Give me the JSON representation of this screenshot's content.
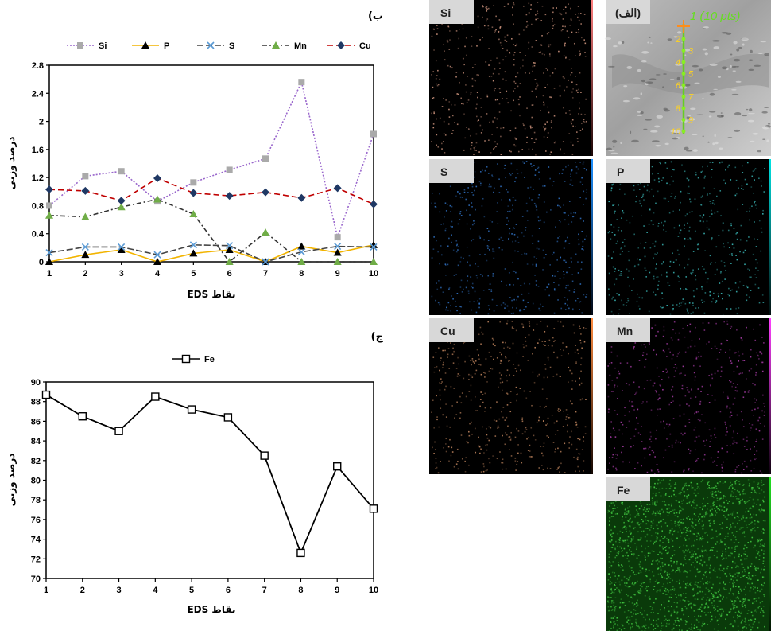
{
  "panels": {
    "b_label": "(ب",
    "c_label": "(ج",
    "a_label": "(الف)"
  },
  "sem": {
    "overlay_label": "1 (10 pts)",
    "point_numbers": [
      "2",
      "3",
      "4",
      "5",
      "6",
      "7",
      "8",
      "9",
      "10"
    ]
  },
  "maps": [
    {
      "element": "Si",
      "dot_color": "#c8907a",
      "bar_top": "#ff7f7f",
      "bar_bottom": "#1a0505"
    },
    {
      "element": "S",
      "dot_color": "#2f6fbf",
      "bar_top": "#1e90ff",
      "bar_bottom": "#020814"
    },
    {
      "element": "P",
      "dot_color": "#38b2b2",
      "bar_top": "#00e5e5",
      "bar_bottom": "#021010"
    },
    {
      "element": "Cu",
      "dot_color": "#b9805a",
      "bar_top": "#ff8c40",
      "bar_bottom": "#120602"
    },
    {
      "element": "Mn",
      "dot_color": "#a03aa0",
      "bar_top": "#ff40ff",
      "bar_bottom": "#100210"
    },
    {
      "element": "Fe",
      "dot_color": "#3fc23f",
      "bar_top": "#22e022",
      "bar_bottom": "#021202"
    }
  ],
  "chart_data": [
    {
      "type": "line",
      "xlabel": "EDS نقاط",
      "ylabel": "درصد وزنی",
      "x": [
        1,
        2,
        3,
        4,
        5,
        6,
        7,
        8,
        9,
        10
      ],
      "ylim": [
        0,
        2.8
      ],
      "yticks": [
        "0",
        "0.4",
        "0.8",
        "1.2",
        "1.6",
        "2",
        "2.4",
        "2.8"
      ],
      "ytick_values": [
        0,
        0.4,
        0.8,
        1.2,
        1.6,
        2.0,
        2.4,
        2.8
      ],
      "legend_position": "top",
      "grid": false,
      "series": [
        {
          "name": "Si",
          "color": "#9966cc",
          "dash": "2,2",
          "marker": "square",
          "marker_color": "#aaaaaa",
          "values": [
            0.8,
            1.22,
            1.29,
            0.86,
            1.13,
            1.31,
            1.47,
            2.56,
            0.35,
            1.82
          ]
        },
        {
          "name": "P",
          "color": "#f2b400",
          "dash": "",
          "marker": "triangle",
          "marker_color": "#000000",
          "values": [
            0.0,
            0.1,
            0.17,
            0.0,
            0.12,
            0.17,
            0.0,
            0.22,
            0.13,
            0.24
          ]
        },
        {
          "name": "S",
          "color": "#444444",
          "dash": "8,3",
          "marker": "x",
          "marker_color": "#5b9bd5",
          "values": [
            0.13,
            0.21,
            0.21,
            0.1,
            0.24,
            0.23,
            0.0,
            0.14,
            0.22,
            0.21
          ]
        },
        {
          "name": "Mn",
          "color": "#333333",
          "dash": "6,3,2,3",
          "marker": "triangle",
          "marker_color": "#70ad47",
          "values": [
            0.66,
            0.64,
            0.78,
            0.89,
            0.68,
            0.0,
            0.42,
            0.0,
            0.0,
            0.0
          ]
        },
        {
          "name": "Cu",
          "color": "#c00000",
          "dash": "7,4",
          "marker": "diamond",
          "marker_color": "#1f3864",
          "values": [
            1.03,
            1.01,
            0.87,
            1.19,
            0.98,
            0.94,
            0.99,
            0.91,
            1.05,
            0.82
          ]
        }
      ]
    },
    {
      "type": "line",
      "xlabel": "EDS نقاط",
      "ylabel": "درصد وزنی",
      "x": [
        1,
        2,
        3,
        4,
        5,
        6,
        7,
        8,
        9,
        10
      ],
      "ylim": [
        70,
        90
      ],
      "yticks": [
        "70",
        "72",
        "74",
        "76",
        "78",
        "80",
        "82",
        "84",
        "86",
        "88",
        "90"
      ],
      "ytick_values": [
        70,
        72,
        74,
        76,
        78,
        80,
        82,
        84,
        86,
        88,
        90
      ],
      "legend_position": "top",
      "grid": false,
      "series": [
        {
          "name": "Fe",
          "color": "#000000",
          "dash": "",
          "marker": "open-square",
          "marker_color": "#ffffff",
          "values": [
            88.7,
            86.5,
            85.0,
            88.5,
            87.2,
            86.4,
            82.5,
            72.6,
            81.4,
            77.1
          ]
        }
      ]
    }
  ]
}
